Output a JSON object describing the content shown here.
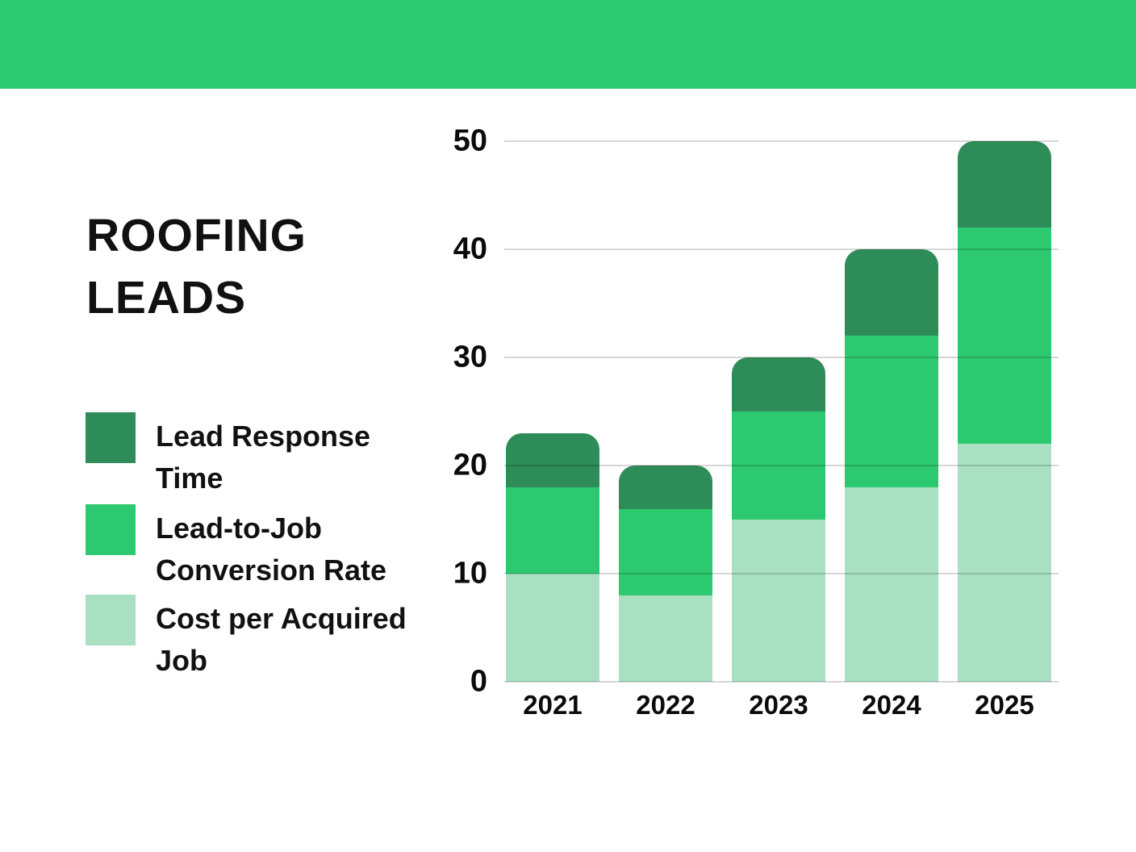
{
  "banner": {
    "color": "#2dc970"
  },
  "title": {
    "line1": "ROOFING",
    "line2": "LEADS"
  },
  "legend": {
    "items": [
      {
        "series": "Lead Response Time",
        "line1": "Lead Response",
        "line2": "Time",
        "color": "#2e8c58"
      },
      {
        "series": "Lead-to-Job Conversion Rate",
        "line1": "Lead-to-Job",
        "line2": "Conversion Rate",
        "color": "#2dc970"
      },
      {
        "series": "Cost per Acquired Job",
        "line1": "Cost per Acquired",
        "line2": "Job",
        "color": "#a9e0c2"
      }
    ]
  },
  "chart_data": {
    "type": "bar",
    "subtype": "stacked",
    "title": "ROOFING LEADS",
    "xlabel": "",
    "ylabel": "",
    "categories": [
      "2021",
      "2022",
      "2023",
      "2024",
      "2025"
    ],
    "series": [
      {
        "name": "Cost per Acquired Job",
        "color": "#a9e0c2",
        "values": [
          10,
          8,
          15,
          18,
          22
        ]
      },
      {
        "name": "Lead-to-Job Conversion Rate",
        "color": "#2dc970",
        "values": [
          8,
          8,
          10,
          14,
          20
        ]
      },
      {
        "name": "Lead Response Time",
        "color": "#2e8c58",
        "values": [
          5,
          4,
          5,
          8,
          8
        ]
      }
    ],
    "totals": [
      23,
      20,
      30,
      40,
      50
    ],
    "ylim": [
      0,
      50
    ],
    "yticks": [
      0,
      10,
      20,
      30,
      40,
      50
    ],
    "grid": "horizontal",
    "legend_position": "left"
  }
}
